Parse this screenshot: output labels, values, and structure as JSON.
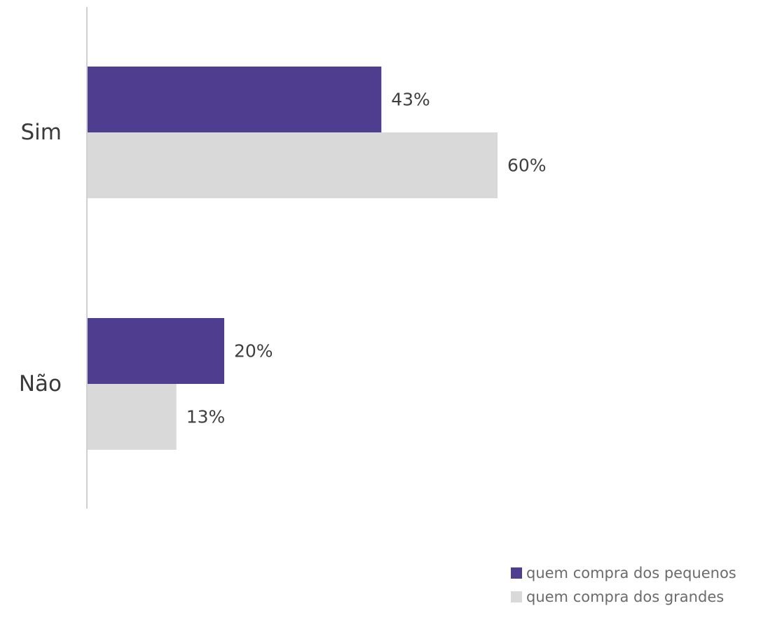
{
  "chart_data": {
    "type": "bar",
    "orientation": "horizontal",
    "categories": [
      "Sim",
      "Não"
    ],
    "series": [
      {
        "name": "quem compra dos pequenos",
        "values": [
          43,
          20
        ],
        "labels": [
          "43%",
          "20%"
        ],
        "color": "#4f3d8f"
      },
      {
        "name": "quem compra dos grandes",
        "values": [
          60,
          13
        ],
        "labels": [
          "60%",
          "13%"
        ],
        "color": "#d9d9d9"
      }
    ],
    "title": "",
    "xlabel": "",
    "ylabel": "",
    "value_format": "percent",
    "xlim": [
      0,
      100
    ],
    "grid": false,
    "legend_position": "bottom-right"
  },
  "colors": {
    "axis": "#d0d0d0",
    "category_text": "#3a3a3a",
    "value_text": "#3f3f3f",
    "legend_text": "#6b6b6b"
  }
}
